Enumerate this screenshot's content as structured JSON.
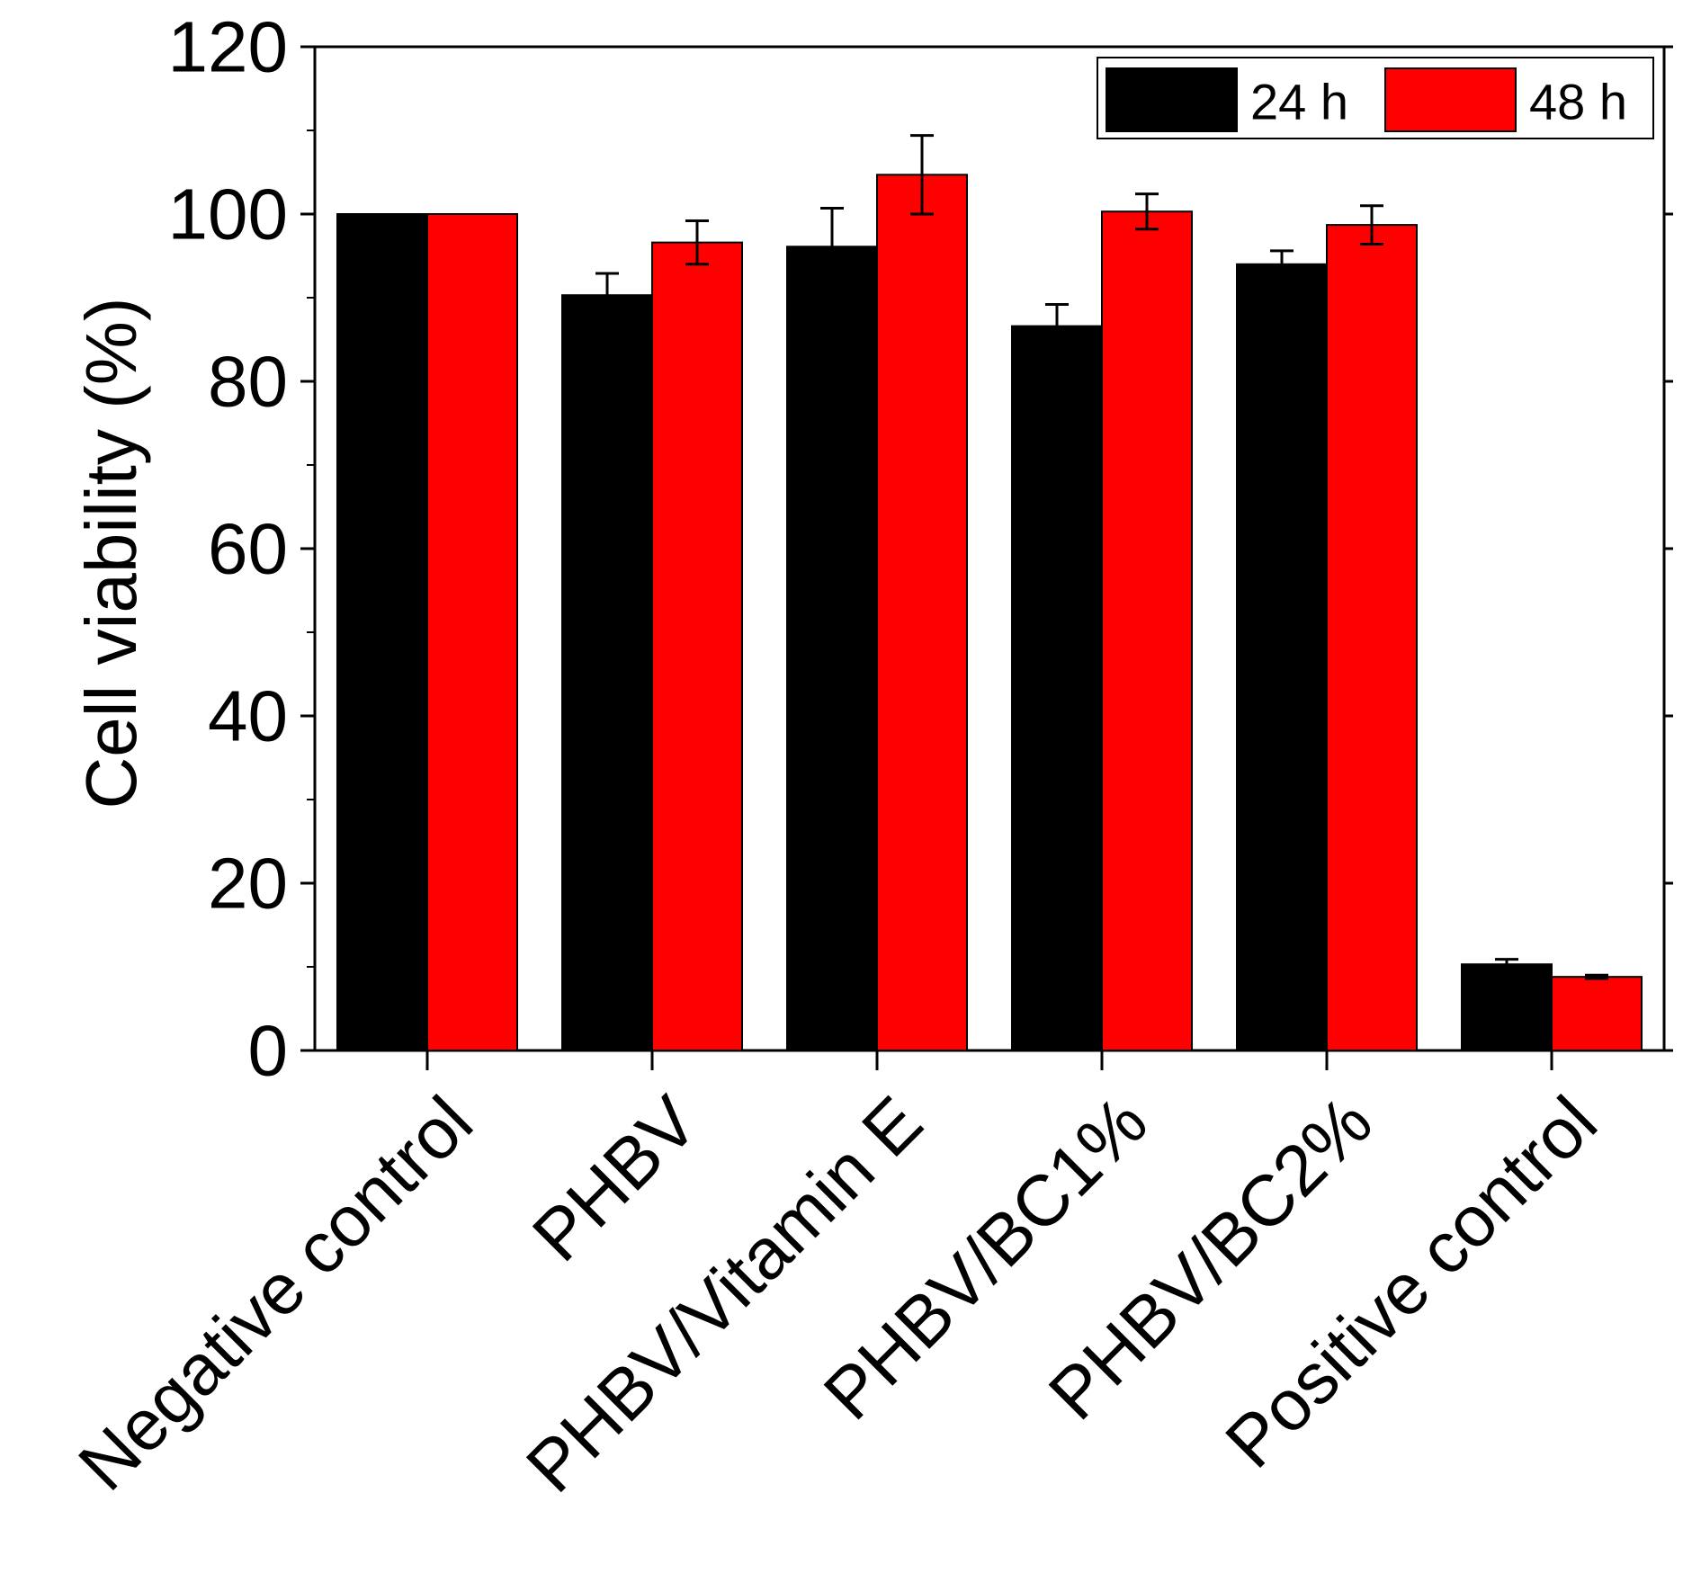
{
  "chart_data": {
    "type": "bar",
    "title": "",
    "xlabel": "",
    "ylabel": "Cell viability (%)",
    "ylim": [
      0,
      120
    ],
    "yticks": [
      0,
      20,
      40,
      60,
      80,
      100,
      120
    ],
    "categories": [
      "Negative control",
      "PHBV",
      "PHBV/Vitamin E",
      "PHBV/BC1%",
      "PHBV/BC2%",
      "Positive control"
    ],
    "series": [
      {
        "name": "24 h",
        "color": "#000000",
        "values": [
          100,
          90.3,
          96.1,
          86.6,
          94.0,
          10.3
        ],
        "errors": [
          0,
          2.6,
          4.6,
          2.6,
          1.6,
          0.6
        ]
      },
      {
        "name": "48 h",
        "color": "#ff0000",
        "values": [
          100,
          96.6,
          104.7,
          100.3,
          98.7,
          8.8
        ],
        "errors": [
          0,
          2.6,
          4.7,
          2.1,
          2.3,
          0.2
        ]
      }
    ],
    "legend": "top-right",
    "grid": false
  }
}
